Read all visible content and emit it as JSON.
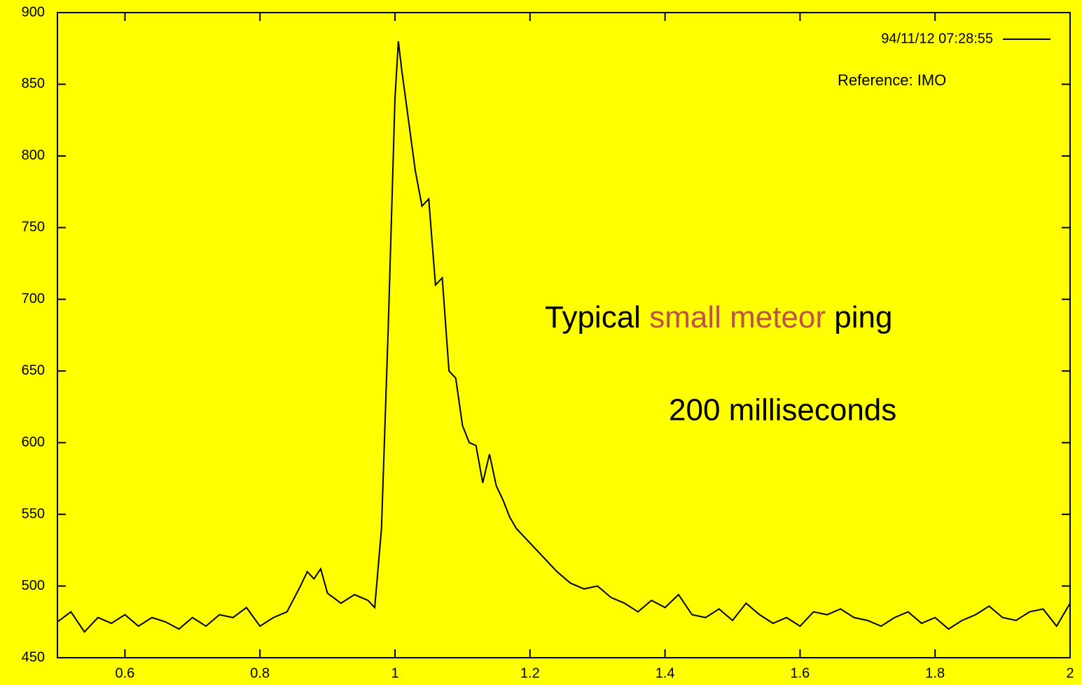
{
  "chart_data": {
    "type": "line",
    "x": [
      0.5,
      0.52,
      0.54,
      0.56,
      0.58,
      0.6,
      0.62,
      0.64,
      0.66,
      0.68,
      0.7,
      0.72,
      0.74,
      0.76,
      0.78,
      0.8,
      0.82,
      0.84,
      0.86,
      0.87,
      0.88,
      0.89,
      0.9,
      0.92,
      0.94,
      0.96,
      0.97,
      0.98,
      0.99,
      1.0,
      1.005,
      1.01,
      1.02,
      1.03,
      1.04,
      1.05,
      1.06,
      1.07,
      1.08,
      1.09,
      1.1,
      1.11,
      1.12,
      1.13,
      1.14,
      1.15,
      1.16,
      1.17,
      1.18,
      1.19,
      1.2,
      1.22,
      1.24,
      1.26,
      1.28,
      1.3,
      1.32,
      1.34,
      1.36,
      1.38,
      1.4,
      1.42,
      1.44,
      1.46,
      1.48,
      1.5,
      1.52,
      1.54,
      1.56,
      1.58,
      1.6,
      1.62,
      1.64,
      1.66,
      1.68,
      1.7,
      1.72,
      1.74,
      1.76,
      1.78,
      1.8,
      1.82,
      1.84,
      1.86,
      1.88,
      1.9,
      1.92,
      1.94,
      1.96,
      1.98,
      2.0
    ],
    "series": [
      {
        "name": "94/11/12 07:28:55",
        "color": "#000000",
        "values": [
          475,
          482,
          468,
          478,
          474,
          480,
          472,
          478,
          475,
          470,
          478,
          472,
          480,
          478,
          485,
          472,
          478,
          482,
          500,
          510,
          505,
          512,
          495,
          488,
          494,
          490,
          485,
          540,
          680,
          840,
          880,
          860,
          825,
          790,
          765,
          770,
          710,
          715,
          650,
          645,
          612,
          600,
          598,
          572,
          592,
          570,
          560,
          548,
          540,
          535,
          530,
          520,
          510,
          502,
          498,
          500,
          492,
          488,
          482,
          490,
          485,
          494,
          480,
          478,
          484,
          476,
          488,
          480,
          474,
          478,
          472,
          482,
          480,
          484,
          478,
          476,
          472,
          478,
          482,
          474,
          478,
          470,
          476,
          480,
          486,
          478,
          476,
          482,
          484,
          472,
          488
        ]
      }
    ],
    "xlim": [
      0.5,
      2
    ],
    "ylim": [
      450,
      900
    ],
    "xticks": [
      0.6,
      0.8,
      1,
      1.2,
      1.4,
      1.6,
      1.8,
      2
    ],
    "yticks": [
      450,
      500,
      550,
      600,
      650,
      700,
      750,
      800,
      850,
      900
    ],
    "legend": "top-right",
    "annotations": [
      {
        "text": "Reference: IMO"
      },
      {
        "parts": [
          {
            "text": "Typical"
          },
          {
            "text": "small meteor",
            "color": "#c0504d"
          },
          {
            "text": "ping"
          }
        ]
      },
      {
        "text": "200 milliseconds"
      }
    ]
  }
}
